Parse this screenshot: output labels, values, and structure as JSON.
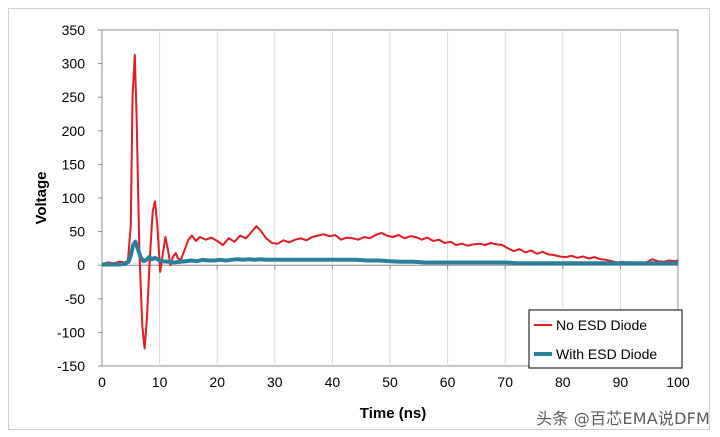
{
  "chart_data": {
    "type": "line",
    "title": "",
    "xlabel": "Time (ns)",
    "ylabel": "Voltage",
    "xlim": [
      0,
      100
    ],
    "ylim": [
      -150,
      350
    ],
    "x_ticks": [
      0,
      10,
      20,
      30,
      40,
      50,
      60,
      70,
      80,
      90,
      100
    ],
    "y_ticks": [
      -150,
      -100,
      -50,
      0,
      50,
      100,
      150,
      200,
      250,
      300,
      350
    ],
    "grid": {
      "vertical": true,
      "horizontal": false
    },
    "legend_position": "bottom-right",
    "series": [
      {
        "name": "No ESD Diode",
        "color": "#e31b23",
        "points": [
          [
            0,
            2
          ],
          [
            1,
            4
          ],
          [
            2,
            3
          ],
          [
            3,
            5
          ],
          [
            4,
            4
          ],
          [
            4.5,
            7
          ],
          [
            5,
            60
          ],
          [
            5.3,
            250
          ],
          [
            5.7,
            313
          ],
          [
            6.0,
            220
          ],
          [
            6.5,
            20
          ],
          [
            7.0,
            -90
          ],
          [
            7.4,
            -124
          ],
          [
            7.8,
            -80
          ],
          [
            8.3,
            10
          ],
          [
            8.8,
            80
          ],
          [
            9.2,
            95
          ],
          [
            9.6,
            60
          ],
          [
            10.1,
            -10
          ],
          [
            10.6,
            20
          ],
          [
            11.0,
            42
          ],
          [
            11.4,
            25
          ],
          [
            11.9,
            0
          ],
          [
            12.3,
            12
          ],
          [
            12.8,
            18
          ],
          [
            13.2,
            10
          ],
          [
            13.7,
            8
          ],
          [
            14.3,
            22
          ],
          [
            15.0,
            38
          ],
          [
            15.6,
            44
          ],
          [
            16.3,
            36
          ],
          [
            17.0,
            42
          ],
          [
            18.0,
            38
          ],
          [
            19.0,
            41
          ],
          [
            20.0,
            36
          ],
          [
            21.0,
            30
          ],
          [
            22.0,
            40
          ],
          [
            23.0,
            35
          ],
          [
            24.0,
            44
          ],
          [
            25.0,
            40
          ],
          [
            26.0,
            50
          ],
          [
            26.8,
            58
          ],
          [
            27.5,
            52
          ],
          [
            28.5,
            40
          ],
          [
            29.5,
            33
          ],
          [
            30.5,
            32
          ],
          [
            31.5,
            37
          ],
          [
            32.5,
            34
          ],
          [
            33.5,
            38
          ],
          [
            34.5,
            40
          ],
          [
            35.5,
            37
          ],
          [
            36.5,
            42
          ],
          [
            37.5,
            44
          ],
          [
            38.5,
            46
          ],
          [
            39.5,
            43
          ],
          [
            40.5,
            45
          ],
          [
            41.5,
            38
          ],
          [
            42.5,
            41
          ],
          [
            43.5,
            40
          ],
          [
            44.5,
            38
          ],
          [
            45.5,
            42
          ],
          [
            46.5,
            40
          ],
          [
            47.5,
            45
          ],
          [
            48.5,
            48
          ],
          [
            49.5,
            44
          ],
          [
            50.5,
            42
          ],
          [
            51.5,
            45
          ],
          [
            52.5,
            40
          ],
          [
            53.5,
            43
          ],
          [
            54.5,
            42
          ],
          [
            55.5,
            38
          ],
          [
            56.5,
            41
          ],
          [
            57.5,
            36
          ],
          [
            58.5,
            38
          ],
          [
            59.5,
            33
          ],
          [
            60.5,
            35
          ],
          [
            61.5,
            30
          ],
          [
            62.5,
            32
          ],
          [
            63.5,
            29
          ],
          [
            64.5,
            31
          ],
          [
            65.5,
            32
          ],
          [
            66.5,
            30
          ],
          [
            67.5,
            33
          ],
          [
            68.5,
            31
          ],
          [
            69.5,
            30
          ],
          [
            70.5,
            25
          ],
          [
            71.5,
            21
          ],
          [
            72.5,
            24
          ],
          [
            73.5,
            19
          ],
          [
            74.5,
            22
          ],
          [
            75.5,
            17
          ],
          [
            76.5,
            20
          ],
          [
            77.5,
            16
          ],
          [
            78.5,
            15
          ],
          [
            79.5,
            13
          ],
          [
            80.5,
            12
          ],
          [
            81.5,
            14
          ],
          [
            82.5,
            11
          ],
          [
            83.5,
            13
          ],
          [
            84.5,
            10
          ],
          [
            85.5,
            12
          ],
          [
            86.5,
            9
          ],
          [
            87.5,
            8
          ],
          [
            88.5,
            6
          ],
          [
            89.5,
            4
          ],
          [
            90.5,
            5
          ],
          [
            91.5,
            2
          ],
          [
            92.5,
            3
          ],
          [
            93.5,
            2
          ],
          [
            94.5,
            4
          ],
          [
            95.5,
            9
          ],
          [
            96.5,
            6
          ],
          [
            97.5,
            5
          ],
          [
            98.5,
            7
          ],
          [
            99.5,
            6
          ],
          [
            100,
            7
          ]
        ]
      },
      {
        "name": "With ESD Diode",
        "color": "#2a7f9a",
        "points": [
          [
            0,
            1
          ],
          [
            1,
            1
          ],
          [
            2,
            1
          ],
          [
            3,
            1
          ],
          [
            4,
            2
          ],
          [
            4.6,
            5
          ],
          [
            5.0,
            14
          ],
          [
            5.4,
            30
          ],
          [
            5.8,
            35
          ],
          [
            6.2,
            25
          ],
          [
            6.7,
            12
          ],
          [
            7.2,
            6
          ],
          [
            7.7,
            8
          ],
          [
            8.2,
            12
          ],
          [
            8.7,
            9
          ],
          [
            9.2,
            11
          ],
          [
            9.8,
            8
          ],
          [
            10.5,
            6
          ],
          [
            11.5,
            5
          ],
          [
            12.5,
            4
          ],
          [
            13.5,
            5
          ],
          [
            14.5,
            6
          ],
          [
            15.5,
            7
          ],
          [
            16.5,
            6
          ],
          [
            17.5,
            8
          ],
          [
            18.5,
            7
          ],
          [
            19.5,
            7
          ],
          [
            20.5,
            8
          ],
          [
            21.5,
            7
          ],
          [
            22.5,
            8
          ],
          [
            23.5,
            9
          ],
          [
            24.5,
            8
          ],
          [
            25.5,
            9
          ],
          [
            26.5,
            8
          ],
          [
            27.5,
            9
          ],
          [
            28.5,
            8
          ],
          [
            30,
            8
          ],
          [
            32,
            8
          ],
          [
            34,
            8
          ],
          [
            36,
            8
          ],
          [
            38,
            8
          ],
          [
            40,
            8
          ],
          [
            42,
            8
          ],
          [
            44,
            8
          ],
          [
            46,
            7
          ],
          [
            48,
            7
          ],
          [
            50,
            6
          ],
          [
            52,
            5
          ],
          [
            54,
            5
          ],
          [
            56,
            4
          ],
          [
            58,
            4
          ],
          [
            60,
            4
          ],
          [
            62,
            4
          ],
          [
            64,
            4
          ],
          [
            66,
            4
          ],
          [
            68,
            4
          ],
          [
            70,
            4
          ],
          [
            72,
            3
          ],
          [
            74,
            3
          ],
          [
            76,
            3
          ],
          [
            78,
            3
          ],
          [
            80,
            3
          ],
          [
            82,
            3
          ],
          [
            84,
            3
          ],
          [
            86,
            3
          ],
          [
            88,
            3
          ],
          [
            90,
            3
          ],
          [
            92,
            3
          ],
          [
            94,
            3
          ],
          [
            96,
            3
          ],
          [
            98,
            3
          ],
          [
            100,
            3
          ]
        ]
      }
    ]
  },
  "watermark": "头条 @百芯EMA说DFM"
}
